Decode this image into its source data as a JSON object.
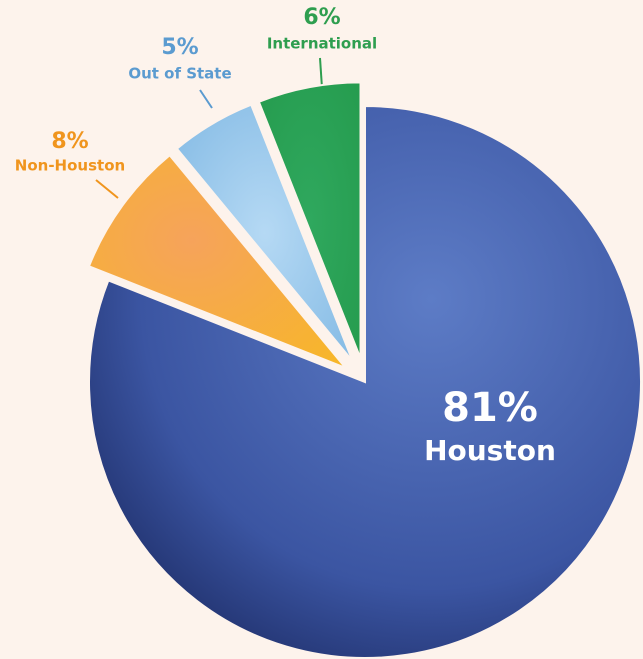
{
  "chart_data": {
    "type": "pie",
    "categories": [
      "Houston",
      "Non-Houston",
      "Out of State",
      "International"
    ],
    "values": [
      81,
      8,
      5,
      6
    ],
    "value_labels": [
      "81%",
      "8%",
      "5%",
      "6%"
    ],
    "colors": [
      "#3f5ba9",
      "#f39a3a",
      "#93c6ec",
      "#2fa55c"
    ],
    "label_colors": [
      "#ffffff",
      "#f0951e",
      "#5b9bd0",
      "#2e9e4f"
    ]
  }
}
